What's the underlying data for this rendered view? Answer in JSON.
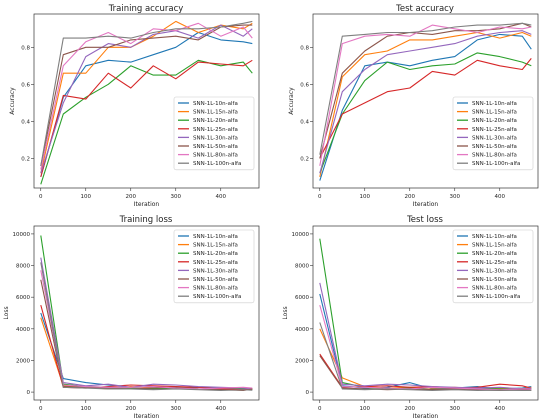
{
  "chart_data": [
    {
      "type": "line",
      "title": "Training accuracy",
      "xlabel": "Iteration",
      "ylabel": "Accuracy",
      "xlim": [
        -15,
        485
      ],
      "ylim": [
        0.04,
        0.98
      ],
      "xticks": [
        0,
        100,
        200,
        300,
        400
      ],
      "yticks": [
        0.2,
        0.4,
        0.6,
        0.8
      ],
      "legend_position": "lower-right",
      "x": [
        0,
        50,
        100,
        150,
        200,
        250,
        300,
        350,
        400,
        450,
        470
      ],
      "series": [
        {
          "name": "SNN-1L-10n-alfa",
          "values": [
            0.1,
            0.53,
            0.7,
            0.73,
            0.72,
            0.76,
            0.8,
            0.88,
            0.84,
            0.83,
            0.82
          ]
        },
        {
          "name": "SNN-1L-15n-alfa",
          "values": [
            0.12,
            0.66,
            0.66,
            0.8,
            0.8,
            0.86,
            0.94,
            0.88,
            0.92,
            0.9,
            0.93
          ]
        },
        {
          "name": "SNN-1L-20n-alfa",
          "values": [
            0.06,
            0.44,
            0.53,
            0.6,
            0.7,
            0.65,
            0.65,
            0.73,
            0.7,
            0.72,
            0.66
          ]
        },
        {
          "name": "SNN-1L-25n-alfa",
          "values": [
            0.1,
            0.54,
            0.52,
            0.66,
            0.58,
            0.7,
            0.63,
            0.72,
            0.71,
            0.7,
            0.73
          ]
        },
        {
          "name": "SNN-1L-30n-alfa",
          "values": [
            0.12,
            0.5,
            0.75,
            0.82,
            0.8,
            0.87,
            0.89,
            0.85,
            0.92,
            0.86,
            0.9
          ]
        },
        {
          "name": "SNN-1L-50n-alfa",
          "values": [
            0.16,
            0.76,
            0.8,
            0.8,
            0.84,
            0.85,
            0.86,
            0.84,
            0.91,
            0.92,
            0.92
          ]
        },
        {
          "name": "SNN-1L-80n-alfa",
          "values": [
            0.14,
            0.7,
            0.83,
            0.88,
            0.82,
            0.9,
            0.89,
            0.93,
            0.86,
            0.91,
            0.85
          ]
        },
        {
          "name": "SNN-1L-100n-alfa",
          "values": [
            0.16,
            0.85,
            0.85,
            0.86,
            0.85,
            0.88,
            0.9,
            0.9,
            0.91,
            0.93,
            0.94
          ]
        }
      ]
    },
    {
      "type": "line",
      "title": "Test accuracy",
      "xlabel": "Iteration",
      "ylabel": "Accuracy",
      "xlim": [
        -15,
        485
      ],
      "ylim": [
        0.04,
        0.98
      ],
      "xticks": [
        0,
        100,
        200,
        300,
        400
      ],
      "yticks": [
        0.2,
        0.4,
        0.6,
        0.8
      ],
      "legend_position": "lower-right",
      "x": [
        0,
        50,
        100,
        150,
        200,
        250,
        300,
        350,
        400,
        450,
        470
      ],
      "series": [
        {
          "name": "SNN-1L-10n-alfa",
          "values": [
            0.08,
            0.46,
            0.7,
            0.72,
            0.7,
            0.73,
            0.75,
            0.84,
            0.87,
            0.86,
            0.79
          ]
        },
        {
          "name": "SNN-1L-15n-alfa",
          "values": [
            0.1,
            0.64,
            0.76,
            0.78,
            0.84,
            0.84,
            0.86,
            0.88,
            0.85,
            0.88,
            0.86
          ]
        },
        {
          "name": "SNN-1L-20n-alfa",
          "values": [
            0.12,
            0.44,
            0.62,
            0.72,
            0.68,
            0.7,
            0.71,
            0.77,
            0.75,
            0.72,
            0.7
          ]
        },
        {
          "name": "SNN-1L-25n-alfa",
          "values": [
            0.2,
            0.44,
            0.5,
            0.56,
            0.58,
            0.67,
            0.65,
            0.73,
            0.7,
            0.68,
            0.74
          ]
        },
        {
          "name": "SNN-1L-30n-alfa",
          "values": [
            0.12,
            0.56,
            0.68,
            0.76,
            0.78,
            0.8,
            0.82,
            0.86,
            0.88,
            0.89,
            0.87
          ]
        },
        {
          "name": "SNN-1L-50n-alfa",
          "values": [
            0.2,
            0.66,
            0.78,
            0.86,
            0.88,
            0.87,
            0.89,
            0.89,
            0.9,
            0.93,
            0.91
          ]
        },
        {
          "name": "SNN-1L-80n-alfa",
          "values": [
            0.16,
            0.82,
            0.86,
            0.87,
            0.86,
            0.92,
            0.9,
            0.88,
            0.91,
            0.9,
            0.91
          ]
        },
        {
          "name": "SNN-1L-100n-alfa",
          "values": [
            0.22,
            0.86,
            0.87,
            0.88,
            0.88,
            0.89,
            0.91,
            0.92,
            0.92,
            0.93,
            0.92
          ]
        }
      ]
    },
    {
      "type": "line",
      "title": "Training loss",
      "xlabel": "Iteration",
      "ylabel": "Loss",
      "xlim": [
        -15,
        485
      ],
      "ylim": [
        -500,
        10500
      ],
      "xticks": [
        0,
        100,
        200,
        300,
        400
      ],
      "yticks": [
        0,
        2000,
        4000,
        6000,
        8000,
        10000
      ],
      "legend_position": "upper-right",
      "x": [
        0,
        50,
        100,
        150,
        200,
        250,
        300,
        350,
        400,
        450,
        470
      ],
      "series": [
        {
          "name": "SNN-1L-10n-alfa",
          "values": [
            5000,
            850,
            600,
            450,
            300,
            350,
            250,
            300,
            250,
            200,
            150
          ]
        },
        {
          "name": "SNN-1L-15n-alfa",
          "values": [
            4700,
            400,
            300,
            200,
            350,
            250,
            300,
            200,
            150,
            200,
            180
          ]
        },
        {
          "name": "SNN-1L-20n-alfa",
          "values": [
            9900,
            500,
            350,
            300,
            250,
            200,
            250,
            200,
            150,
            200,
            220
          ]
        },
        {
          "name": "SNN-1L-25n-alfa",
          "values": [
            5500,
            300,
            250,
            350,
            450,
            400,
            350,
            300,
            200,
            150,
            180
          ]
        },
        {
          "name": "SNN-1L-30n-alfa",
          "values": [
            8500,
            600,
            400,
            500,
            300,
            500,
            450,
            350,
            300,
            250,
            200
          ]
        },
        {
          "name": "SNN-1L-50n-alfa",
          "values": [
            7100,
            350,
            300,
            250,
            200,
            250,
            300,
            200,
            150,
            100,
            200
          ]
        },
        {
          "name": "SNN-1L-80n-alfa",
          "values": [
            7700,
            450,
            350,
            300,
            300,
            350,
            250,
            200,
            250,
            300,
            250
          ]
        },
        {
          "name": "SNN-1L-100n-alfa",
          "values": [
            8200,
            300,
            250,
            200,
            200,
            150,
            200,
            150,
            100,
            150,
            120
          ]
        }
      ]
    },
    {
      "type": "line",
      "title": "Test loss",
      "xlabel": "Iteration",
      "ylabel": "Loss",
      "xlim": [
        -15,
        485
      ],
      "ylim": [
        -500,
        10500
      ],
      "xticks": [
        0,
        100,
        200,
        300,
        400
      ],
      "yticks": [
        0,
        2000,
        4000,
        6000,
        8000,
        10000
      ],
      "legend_position": "upper-right",
      "x": [
        0,
        50,
        100,
        150,
        200,
        250,
        300,
        350,
        400,
        450,
        470
      ],
      "series": [
        {
          "name": "SNN-1L-10n-alfa",
          "values": [
            6200,
            400,
            250,
            300,
            600,
            200,
            250,
            350,
            200,
            250,
            350
          ]
        },
        {
          "name": "SNN-1L-15n-alfa",
          "values": [
            4000,
            900,
            350,
            250,
            300,
            250,
            300,
            200,
            250,
            200,
            300
          ]
        },
        {
          "name": "SNN-1L-20n-alfa",
          "values": [
            9700,
            600,
            300,
            200,
            250,
            150,
            200,
            250,
            200,
            150,
            200
          ]
        },
        {
          "name": "SNN-1L-25n-alfa",
          "values": [
            2400,
            300,
            350,
            400,
            300,
            350,
            250,
            300,
            500,
            400,
            250
          ]
        },
        {
          "name": "SNN-1L-30n-alfa",
          "values": [
            6900,
            500,
            400,
            500,
            450,
            350,
            300,
            250,
            300,
            200,
            250
          ]
        },
        {
          "name": "SNN-1L-50n-alfa",
          "values": [
            2300,
            250,
            200,
            150,
            200,
            150,
            200,
            150,
            100,
            150,
            120
          ]
        },
        {
          "name": "SNN-1L-80n-alfa",
          "values": [
            5500,
            350,
            300,
            250,
            200,
            300,
            250,
            200,
            150,
            200,
            180
          ]
        },
        {
          "name": "SNN-1L-100n-alfa",
          "values": [
            4400,
            200,
            150,
            200,
            150,
            100,
            150,
            100,
            120,
            100,
            100
          ]
        }
      ]
    }
  ],
  "series_colors": [
    "#1f77b4",
    "#ff7f0e",
    "#2ca02c",
    "#d62728",
    "#9467bd",
    "#8c564b",
    "#e377c2",
    "#7f7f7f"
  ],
  "panel_titles": [
    "Training accuracy",
    "Test accuracy",
    "Training loss",
    "Test loss"
  ]
}
